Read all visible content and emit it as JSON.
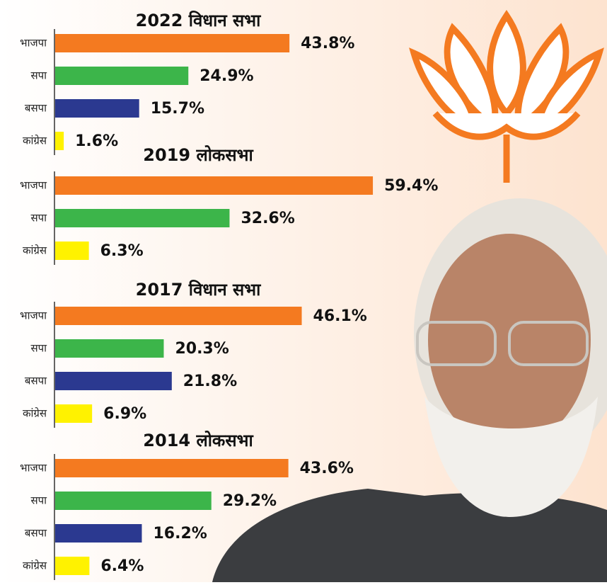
{
  "chart_data": [
    {
      "type": "bar",
      "title": "2022 विधान सभा",
      "categories": [
        "भाजपा",
        "सपा",
        "बसपा",
        "कांग्रेस"
      ],
      "values": [
        43.8,
        24.9,
        15.7,
        1.6
      ],
      "value_labels": [
        "43.8%",
        "24.9%",
        "15.7%",
        "1.6%"
      ],
      "colors": [
        "#f47a20",
        "#3cb54a",
        "#2b3990",
        "#fff200"
      ]
    },
    {
      "type": "bar",
      "title": "2019 लोकसभा",
      "categories": [
        "भाजपा",
        "सपा",
        "कांग्रेस"
      ],
      "values": [
        59.4,
        32.6,
        6.3
      ],
      "value_labels": [
        "59.4%",
        "32.6%",
        "6.3%"
      ],
      "colors": [
        "#f47a20",
        "#3cb54a",
        "#fff200"
      ]
    },
    {
      "type": "bar",
      "title": "2017 विधान सभा",
      "categories": [
        "भाजपा",
        "सपा",
        "बसपा",
        "कांग्रेस"
      ],
      "values": [
        46.1,
        20.3,
        21.8,
        6.9
      ],
      "value_labels": [
        "46.1%",
        "20.3%",
        "21.8%",
        "6.9%"
      ],
      "colors": [
        "#f47a20",
        "#3cb54a",
        "#2b3990",
        "#fff200"
      ]
    },
    {
      "type": "bar",
      "title": "2014 लोकसभा",
      "categories": [
        "भाजपा",
        "सपा",
        "बसपा",
        "कांग्रेस"
      ],
      "values": [
        43.6,
        29.2,
        16.2,
        6.4
      ],
      "value_labels": [
        "43.6%",
        "29.2%",
        "16.2%",
        "6.4%"
      ],
      "colors": [
        "#f47a20",
        "#3cb54a",
        "#2b3990",
        "#fff200"
      ]
    }
  ]
}
